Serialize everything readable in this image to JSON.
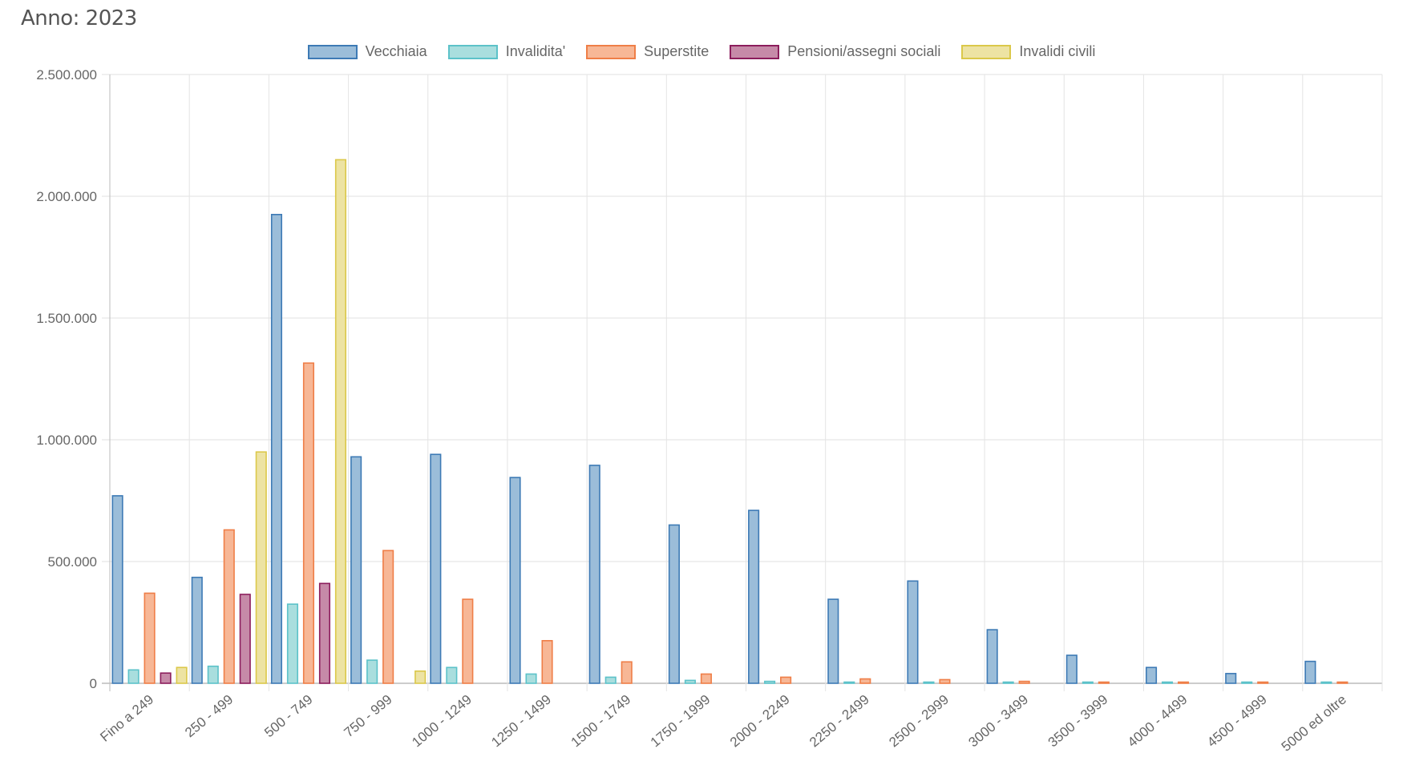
{
  "header": {
    "title": "Anno: 2023"
  },
  "chart_data": {
    "type": "bar",
    "title": "Anno: 2023",
    "xlabel": "",
    "ylabel": "",
    "ylim": [
      0,
      2500000
    ],
    "y_ticks": [
      "0",
      "500.000",
      "1.000.000",
      "1.500.000",
      "2.000.000",
      "2.500.000"
    ],
    "grid": true,
    "legend_position": "top-center",
    "categories": [
      "Fino a 249",
      "250 - 499",
      "500 - 749",
      "750 - 999",
      "1000 - 1249",
      "1250 - 1499",
      "1500 - 1749",
      "1750 - 1999",
      "2000 - 2249",
      "2250 - 2499",
      "2500 - 2999",
      "3000 - 3499",
      "3500 - 3999",
      "4000 - 4499",
      "4500 - 4999",
      "5000 ed oltre"
    ],
    "series": [
      {
        "name": "Vecchiaia",
        "fill": "#9bbdd9",
        "stroke": "#3d7ab5",
        "values": [
          770000,
          435000,
          1925000,
          930000,
          940000,
          845000,
          895000,
          650000,
          710000,
          345000,
          420000,
          220000,
          115000,
          65000,
          40000,
          90000
        ]
      },
      {
        "name": "Invalidita'",
        "fill": "#a9dede",
        "stroke": "#5cc2c9",
        "values": [
          55000,
          70000,
          325000,
          95000,
          65000,
          38000,
          25000,
          12000,
          8000,
          4000,
          3000,
          1500,
          1000,
          500,
          300,
          300
        ]
      },
      {
        "name": "Superstite",
        "fill": "#f7b796",
        "stroke": "#ef7e47",
        "values": [
          370000,
          630000,
          1315000,
          545000,
          345000,
          175000,
          88000,
          38000,
          25000,
          18000,
          15000,
          8000,
          4000,
          2000,
          1500,
          1500
        ]
      },
      {
        "name": "Pensioni/assegni sociali",
        "fill": "#c68aa8",
        "stroke": "#8c1d5c",
        "values": [
          42000,
          365000,
          410000,
          0,
          0,
          0,
          0,
          0,
          0,
          0,
          0,
          0,
          0,
          0,
          0,
          0
        ]
      },
      {
        "name": "Invalidi civili",
        "fill": "#ede3a3",
        "stroke": "#dbc84a",
        "values": [
          65000,
          950000,
          2150000,
          50000,
          0,
          0,
          0,
          0,
          0,
          0,
          0,
          0,
          0,
          0,
          0,
          0
        ]
      }
    ]
  }
}
